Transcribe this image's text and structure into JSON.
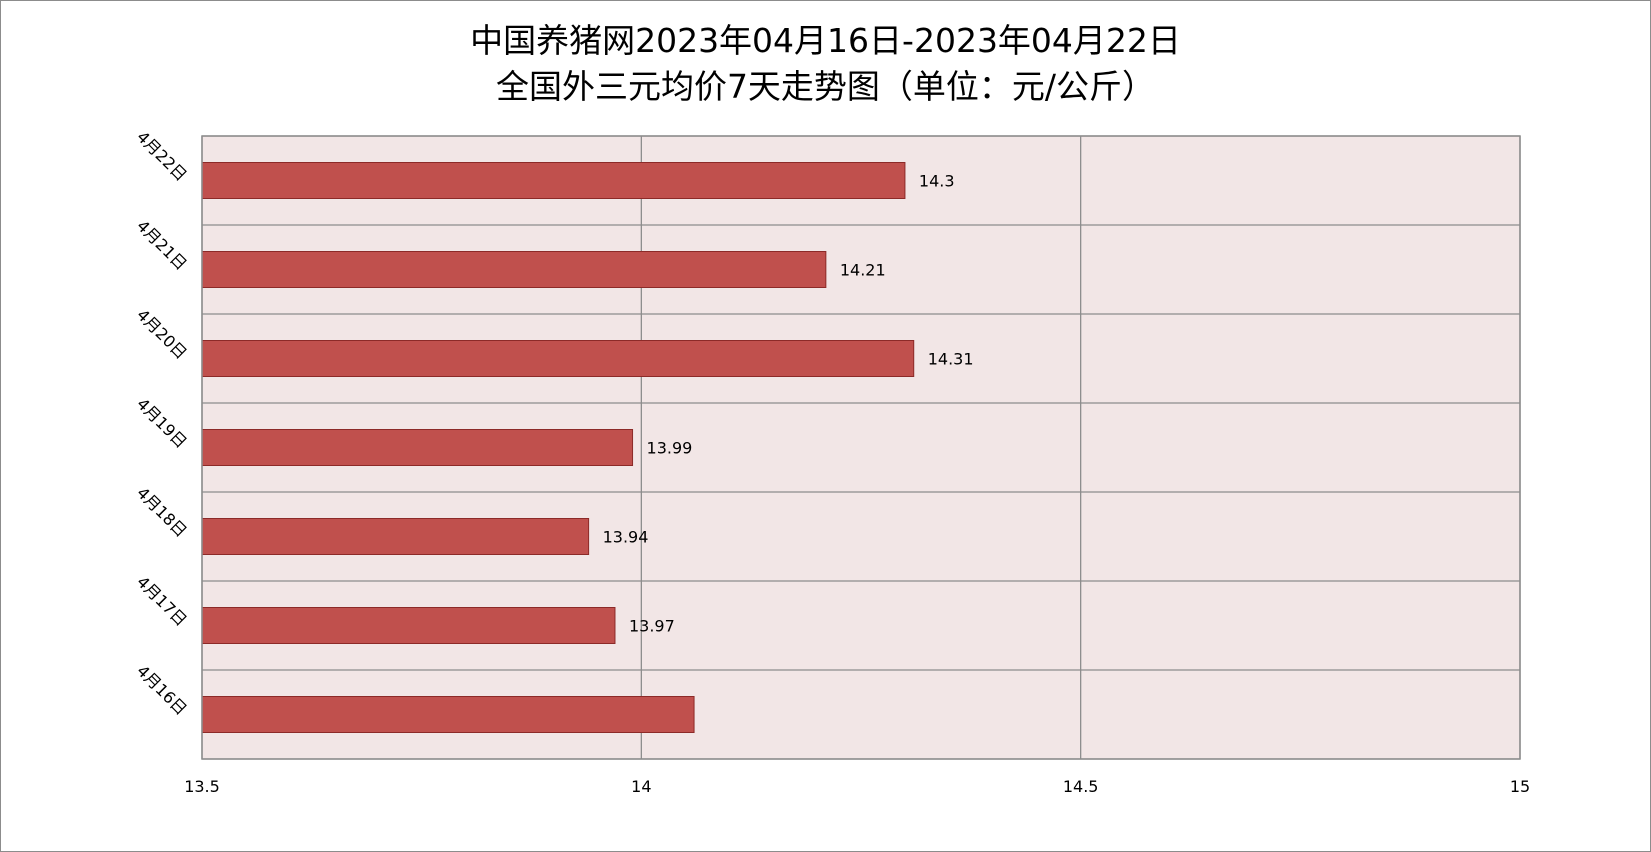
{
  "chart_data": {
    "type": "bar",
    "orientation": "horizontal",
    "title_line1": "中国养猪网2023年04月16日-2023年04月22日",
    "title_line2": "全国外三元均价7天走势图（单位：元/公斤）",
    "categories": [
      "4月16日",
      "4月17日",
      "4月18日",
      "4月19日",
      "4月20日",
      "4月21日",
      "4月22日"
    ],
    "values": [
      14.06,
      13.97,
      13.94,
      13.99,
      14.31,
      14.21,
      14.3
    ],
    "data_labels": [
      "",
      "13.97",
      "13.94",
      "13.99",
      "14.31",
      "14.21",
      "14.3"
    ],
    "xlim": [
      13.5,
      15
    ],
    "x_ticks": [
      "13.5",
      "14",
      "14.5",
      "15"
    ],
    "grid": true,
    "legend": "none",
    "colors": {
      "bar": "#C0504D",
      "bar_border": "#8C2A28",
      "plot_bg": "#F2E6E6",
      "grid": "#8C8C8C"
    }
  }
}
